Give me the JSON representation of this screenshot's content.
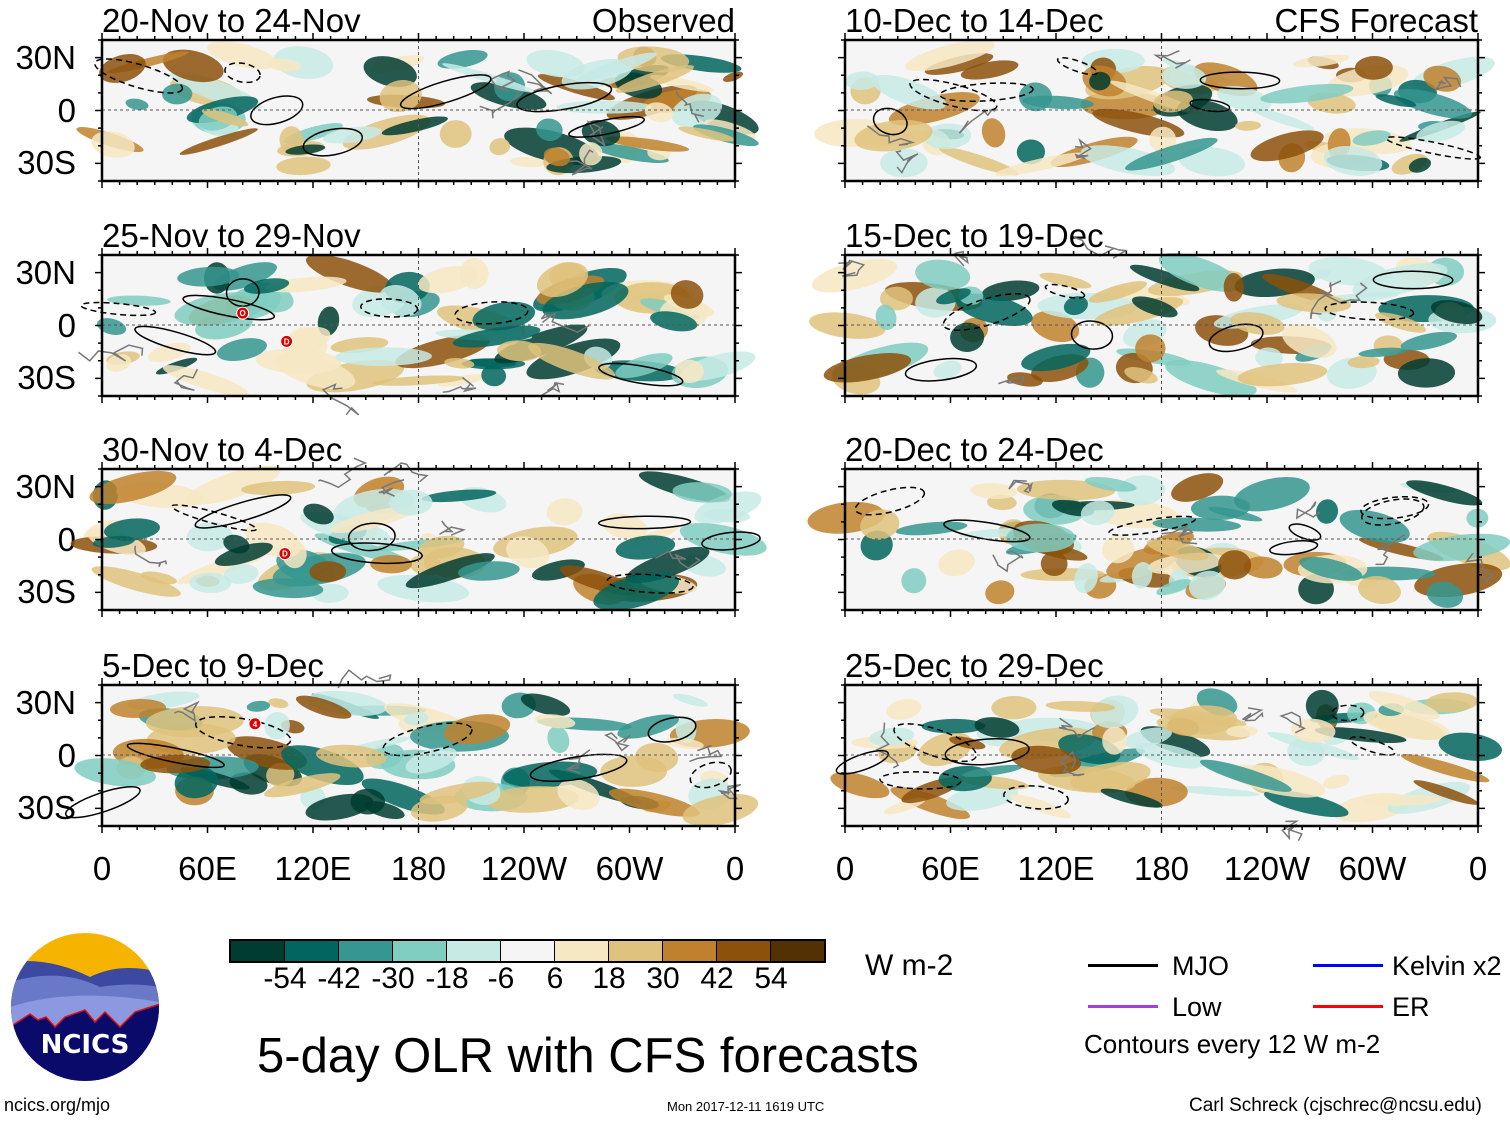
{
  "chart_data": [
    {
      "type": "heatmap",
      "column": "Observed",
      "title": "20-Nov to 24-Nov",
      "header": "Observed",
      "tc_markers": []
    },
    {
      "type": "heatmap",
      "column": "Observed",
      "title": "25-Nov to 29-Nov",
      "tc_markers": [
        {
          "label": "O",
          "lon": 80,
          "lat": 7
        },
        {
          "label": "D",
          "lon": 105,
          "lat": -9
        }
      ]
    },
    {
      "type": "heatmap",
      "column": "Observed",
      "title": "30-Nov to 4-Dec",
      "tc_markers": [
        {
          "label": "D",
          "lon": 104,
          "lat": -8
        }
      ]
    },
    {
      "type": "heatmap",
      "column": "Observed",
      "title": "5-Dec to 9-Dec",
      "tc_markers": [
        {
          "label": "4",
          "lon": 87,
          "lat": 18
        }
      ]
    },
    {
      "type": "heatmap",
      "column": "CFS Forecast",
      "title": "10-Dec to 14-Dec",
      "header": "CFS Forecast",
      "tc_markers": []
    },
    {
      "type": "heatmap",
      "column": "CFS Forecast",
      "title": "15-Dec to 19-Dec",
      "tc_markers": []
    },
    {
      "type": "heatmap",
      "column": "CFS Forecast",
      "title": "20-Dec to 24-Dec",
      "tc_markers": []
    },
    {
      "type": "heatmap",
      "column": "CFS Forecast",
      "title": "25-Dec to 29-Dec",
      "tc_markers": []
    }
  ],
  "axes": {
    "y_ticks": [
      "30N",
      "0",
      "30S"
    ],
    "x_ticks": [
      "0",
      "60E",
      "120E",
      "180",
      "120W",
      "60W",
      "0"
    ],
    "lon_range": [
      0,
      360
    ],
    "lat_range": [
      -40,
      40
    ]
  },
  "colorbar": {
    "units": "W m-2",
    "tick_labels": [
      "-54",
      "-42",
      "-30",
      "-18",
      "-6",
      "6",
      "18",
      "30",
      "42",
      "54"
    ],
    "colors": [
      "#003c30",
      "#01665e",
      "#35978f",
      "#80cdc1",
      "#c7eae5",
      "#f5f5f5",
      "#f6e8c3",
      "#dfc27d",
      "#bf812d",
      "#8c510a",
      "#543005"
    ]
  },
  "legend": {
    "items": [
      {
        "label": "MJO",
        "color": "#000000"
      },
      {
        "label": "Kelvin x2",
        "color": "#0000ff"
      },
      {
        "label": "Low",
        "color": "#a040e0"
      },
      {
        "label": "ER",
        "color": "#ff0000"
      }
    ],
    "note": "Contours every 12 W m-2"
  },
  "title": "5-day OLR with CFS forecasts",
  "footer": {
    "url": "ncics.org/mjo",
    "timestamp": "Mon 2017-12-11 1619 UTC",
    "credit": "Carl Schreck (cjschrec@ncsu.edu)"
  },
  "logo": {
    "text": "NCICS"
  }
}
